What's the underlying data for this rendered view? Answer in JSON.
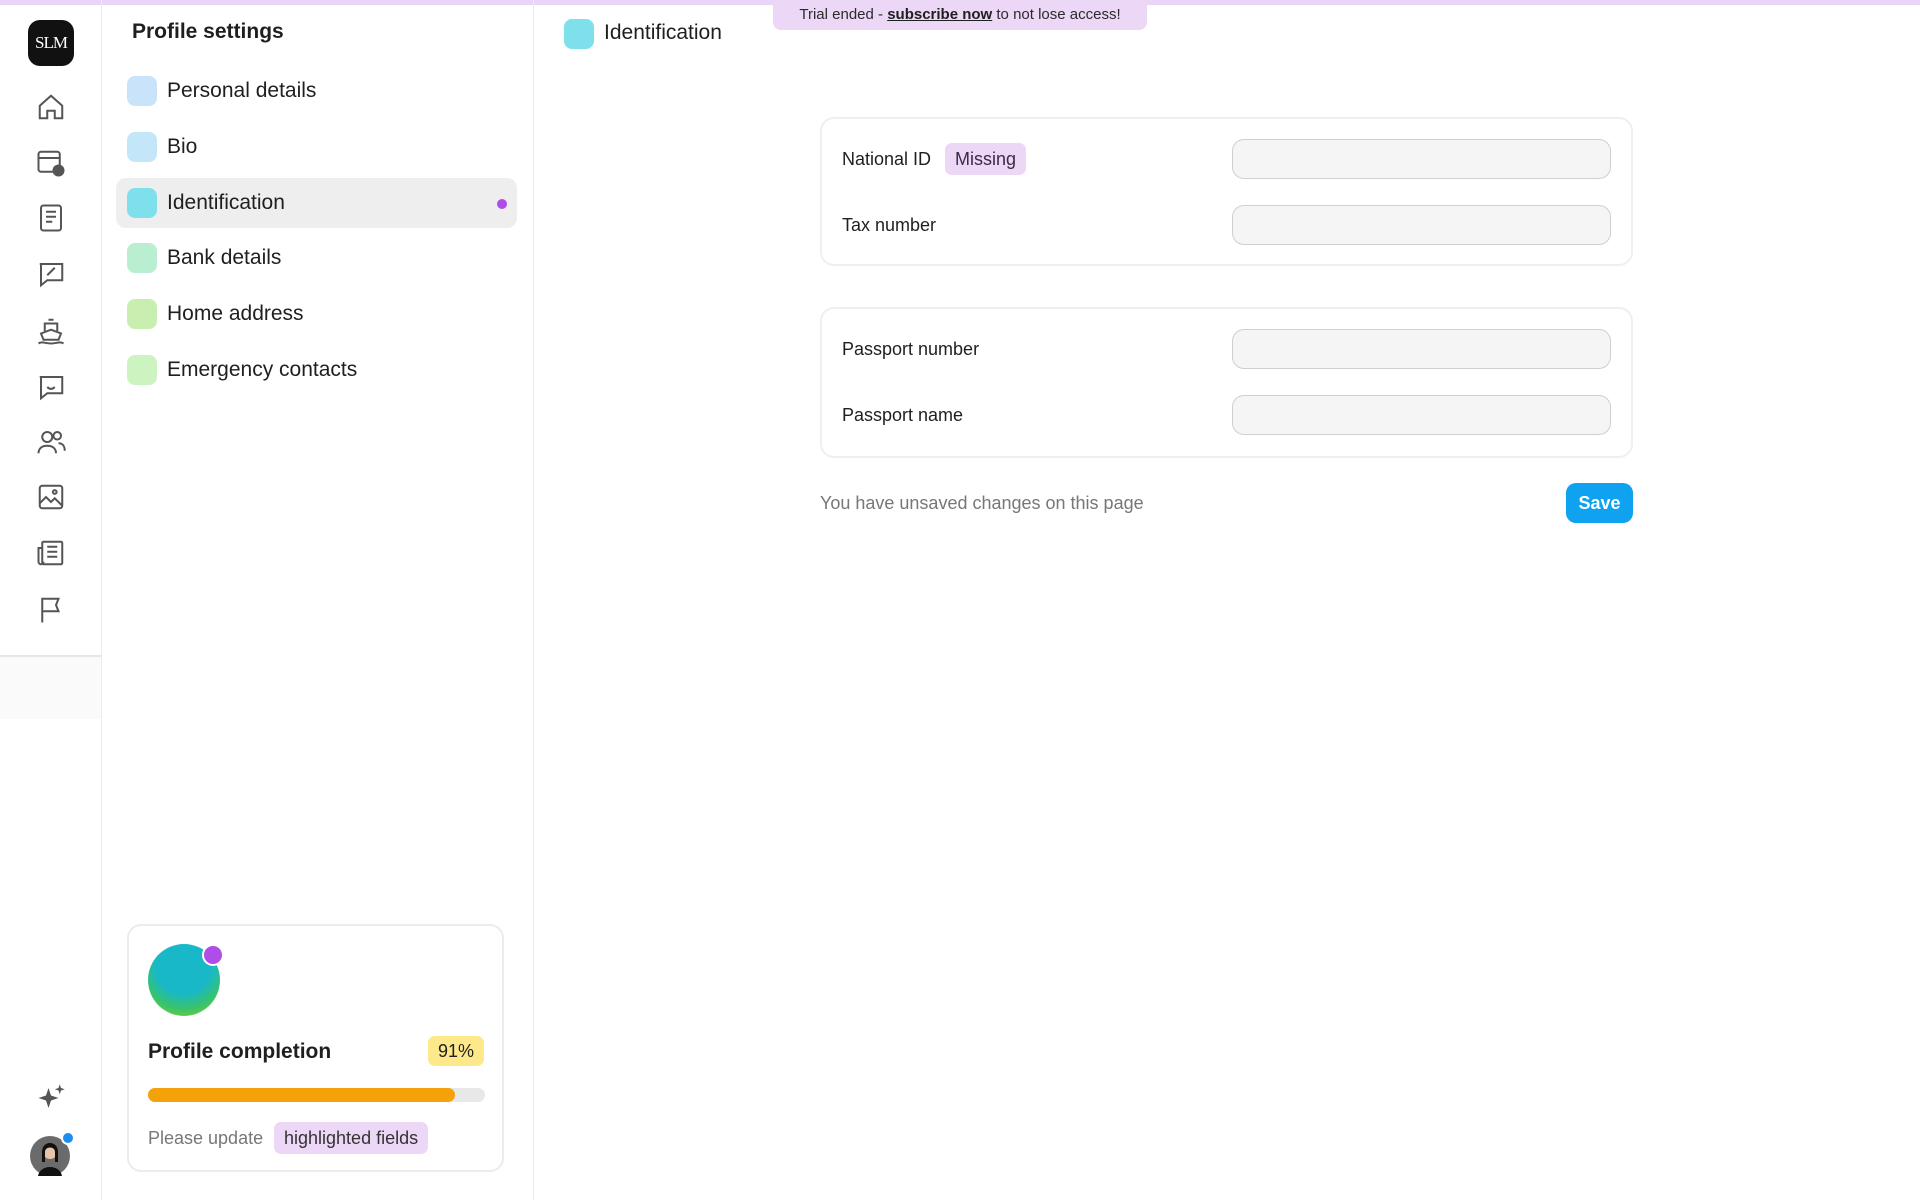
{
  "banner": {
    "prefix": "Trial ended - ",
    "link": "subscribe now",
    "suffix": " to not lose access!"
  },
  "logo": "SLM",
  "sidebar": {
    "title": "Profile settings",
    "items": [
      "Personal details",
      "Bio",
      "Identification",
      "Bank details",
      "Home address",
      "Emergency contacts"
    ]
  },
  "completion": {
    "title": "Profile completion",
    "value": 91,
    "value_label": "91%",
    "hint": "Please update",
    "hint_tag": "highlighted fields"
  },
  "main": {
    "title": "Identification",
    "sections": [
      [
        {
          "label": "National ID",
          "badge": "Missing"
        },
        {
          "label": "Tax number"
        }
      ],
      [
        {
          "label": "Passport number"
        },
        {
          "label": "Passport name"
        }
      ]
    ],
    "unsaved": "You have unsaved changes on this page",
    "save": "Save"
  }
}
